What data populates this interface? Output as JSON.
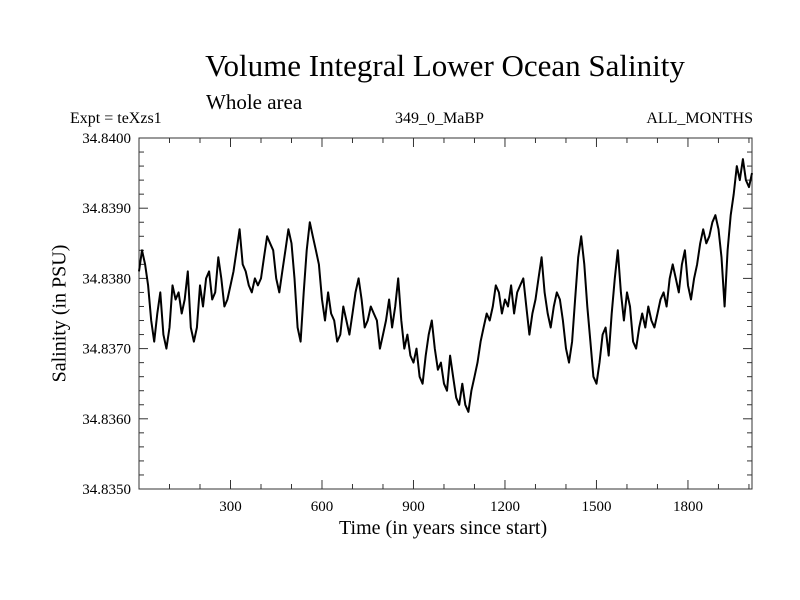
{
  "chart_data": {
    "type": "line",
    "title": "Volume Integral Lower Ocean Salinity",
    "subtitle": "Whole area",
    "annotations": {
      "left": "Expt = teXzs1",
      "center": "349_0_MaBP",
      "right": "ALL_MONTHS"
    },
    "xlabel": "Time (in years since start)",
    "ylabel": "Salinity (in PSU)",
    "xlim": [
      0,
      2010
    ],
    "ylim": [
      34.835,
      34.84
    ],
    "xticks": [
      300,
      600,
      900,
      1200,
      1500,
      1800
    ],
    "xtick_labels": [
      "300",
      "600",
      "900",
      "1200",
      "1500",
      "1800"
    ],
    "yticks": [
      34.835,
      34.836,
      34.837,
      34.838,
      34.839,
      34.84
    ],
    "ytick_labels": [
      "34.8350",
      "34.8360",
      "34.8370",
      "34.8380",
      "34.8390",
      "34.8400"
    ],
    "grid": false,
    "series": [
      {
        "name": "Salinity",
        "x_start": 0,
        "x_step": 10,
        "values": [
          34.8381,
          34.8384,
          34.8382,
          34.8379,
          34.8374,
          34.8371,
          34.8375,
          34.8378,
          34.8372,
          34.837,
          34.8373,
          34.8379,
          34.8377,
          34.8378,
          34.8375,
          34.8377,
          34.8381,
          34.8373,
          34.8371,
          34.8373,
          34.8379,
          34.8376,
          34.838,
          34.8381,
          34.8377,
          34.8378,
          34.8383,
          34.838,
          34.8376,
          34.8377,
          34.8379,
          34.8381,
          34.8384,
          34.8387,
          34.8382,
          34.8381,
          34.8379,
          34.8378,
          34.838,
          34.8379,
          34.838,
          34.8383,
          34.8386,
          34.8385,
          34.8384,
          34.838,
          34.8378,
          34.8381,
          34.8384,
          34.8387,
          34.8385,
          34.838,
          34.8373,
          34.8371,
          34.8378,
          34.8384,
          34.8388,
          34.8386,
          34.8384,
          34.8382,
          34.8377,
          34.8374,
          34.8378,
          34.8375,
          34.8374,
          34.8371,
          34.8372,
          34.8376,
          34.8374,
          34.8372,
          34.8375,
          34.8378,
          34.838,
          34.8377,
          34.8373,
          34.8374,
          34.8376,
          34.8375,
          34.8374,
          34.837,
          34.8372,
          34.8374,
          34.8377,
          34.8373,
          34.8376,
          34.838,
          34.8374,
          34.837,
          34.8372,
          34.8369,
          34.8368,
          34.837,
          34.8366,
          34.8365,
          34.8369,
          34.8372,
          34.8374,
          34.837,
          34.8367,
          34.8368,
          34.8365,
          34.8364,
          34.8369,
          34.8366,
          34.8363,
          34.8362,
          34.8365,
          34.8362,
          34.8361,
          34.8364,
          34.8366,
          34.8368,
          34.8371,
          34.8373,
          34.8375,
          34.8374,
          34.8376,
          34.8379,
          34.8378,
          34.8375,
          34.8377,
          34.8376,
          34.8379,
          34.8375,
          34.8378,
          34.8379,
          34.838,
          34.8376,
          34.8372,
          34.8375,
          34.8377,
          34.838,
          34.8383,
          34.8378,
          34.8375,
          34.8373,
          34.8376,
          34.8378,
          34.8377,
          34.8374,
          34.837,
          34.8368,
          34.8371,
          34.8377,
          34.8383,
          34.8386,
          34.8382,
          34.8376,
          34.8371,
          34.8366,
          34.8365,
          34.8368,
          34.8372,
          34.8373,
          34.8369,
          34.8375,
          34.838,
          34.8384,
          34.8378,
          34.8374,
          34.8378,
          34.8376,
          34.8371,
          34.837,
          34.8373,
          34.8375,
          34.8373,
          34.8376,
          34.8374,
          34.8373,
          34.8375,
          34.8377,
          34.8378,
          34.8376,
          34.838,
          34.8382,
          34.838,
          34.8378,
          34.8382,
          34.8384,
          34.8379,
          34.8377,
          34.838,
          34.8382,
          34.8385,
          34.8387,
          34.8385,
          34.8386,
          34.8388,
          34.8389,
          34.8387,
          34.8383,
          34.8376,
          34.8384,
          34.8389,
          34.8392,
          34.8396,
          34.8394,
          34.8397,
          34.8394,
          34.8393,
          34.8395
        ]
      }
    ]
  }
}
